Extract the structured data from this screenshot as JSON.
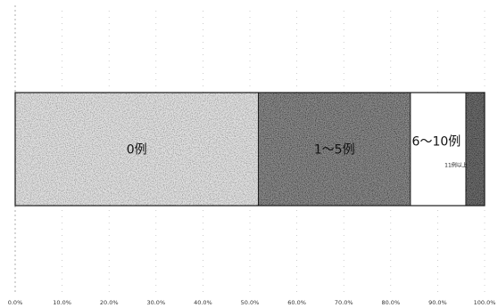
{
  "chart_data": {
    "type": "bar",
    "orientation": "horizontal",
    "stacked": true,
    "title": "",
    "xlabel": "",
    "ylabel": "",
    "xlim": [
      0,
      100
    ],
    "x_ticks": [
      "0.0%",
      "10.0%",
      "20.0%",
      "30.0%",
      "40.0%",
      "50.0%",
      "60.0%",
      "70.0%",
      "80.0%",
      "90.0%",
      "100.0%"
    ],
    "grid": "vertical dashed",
    "legend": "none",
    "segments": [
      {
        "label": "0例",
        "value": 51.8,
        "color": "#e2e2e2",
        "texture": "light-stipple"
      },
      {
        "label": "1〜5例",
        "value": 32.4,
        "color": "#8e8e8e",
        "texture": "dark-stipple"
      },
      {
        "label": "6〜10例",
        "value": 11.8,
        "color": "#ffffff",
        "texture": "none"
      },
      {
        "label": "11例以上",
        "value": 4.0,
        "color": "#707070",
        "texture": "dark-stipple"
      }
    ]
  }
}
